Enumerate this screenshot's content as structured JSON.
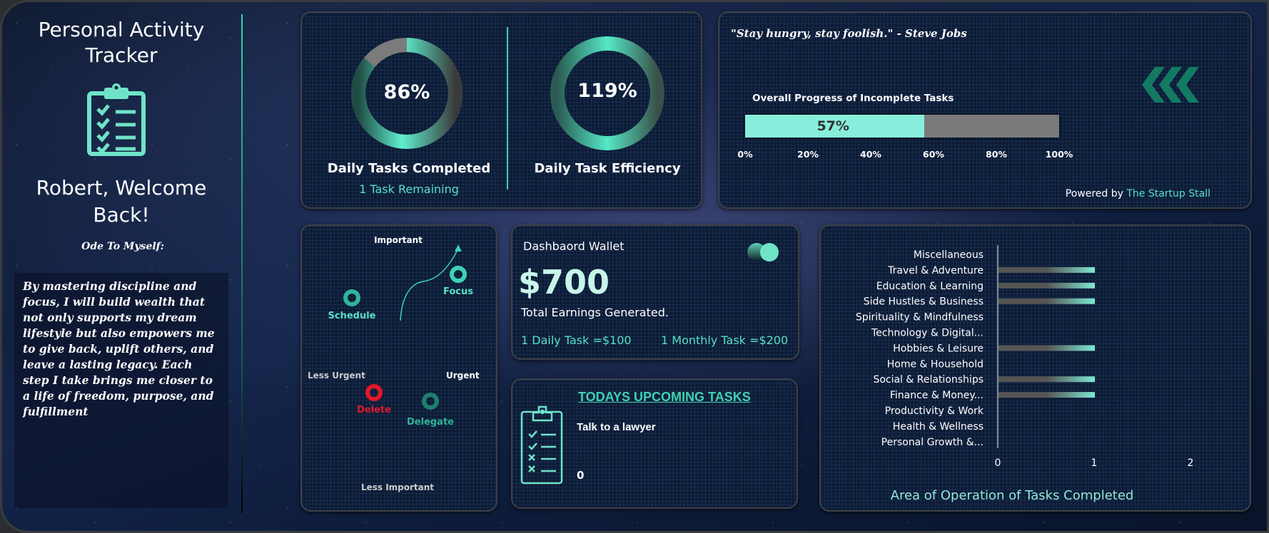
{
  "sidebar": {
    "title": "Personal Activity Tracker",
    "welcome": "Robert, Welcome Back!",
    "ode_title": "Ode To Myself:",
    "ode_text": "By mastering discipline and focus, I will build wealth that not only supports my dream lifestyle but also empowers me to give back, uplift others, and leave a lasting legacy. Each step I take brings me closer to a life of freedom, purpose, and fulfillment",
    "icon": "clipboard-checklist-icon"
  },
  "kpis": {
    "completed": {
      "value": "86%",
      "percent": 86,
      "label": "Daily Tasks Completed",
      "sub": "1 Task Remaining"
    },
    "efficiency": {
      "value": "119%",
      "percent": 119,
      "label": "Daily Task Efficiency"
    }
  },
  "progress": {
    "quote": "\"Stay hungry, stay foolish.\" - Steve Jobs",
    "title": "Overall Progress of Incomplete Tasks",
    "value": "57%",
    "percent": 57,
    "ticks": [
      "0%",
      "20%",
      "40%",
      "60%",
      "80%",
      "100%"
    ],
    "powered_prefix": "Powered by",
    "powered_brand": "The Startup Stall",
    "icon": "chevrons-left-icon"
  },
  "matrix": {
    "top": "Important",
    "bottom": "Less Important",
    "left": "Less Urgent",
    "right": "Urgent",
    "schedule": "Schedule",
    "focus": "Focus",
    "delete": "Delete",
    "delegate": "Delegate"
  },
  "wallet": {
    "title": "Dashbaord Wallet",
    "amount": "$700",
    "caption": "Total Earnings Generated.",
    "daily": "1 Daily Task =$100",
    "monthly": "1 Monthly Task =$200"
  },
  "tasks": {
    "heading": "TODAYS UPCOMING TASKS",
    "item": "Talk to a lawyer",
    "count": "0"
  },
  "colors": {
    "accent": "#57e0c4",
    "gray": "#7a7a7a",
    "delete": "#e0182a"
  },
  "chart_data": {
    "type": "bar",
    "orientation": "horizontal",
    "title": "Area of Operation of Tasks Completed",
    "categories": [
      "Miscellaneous",
      "Travel & Adventure",
      "Education & Learning",
      "Side Hustles & Business",
      "Spirituality & Mindfulness",
      "Technology & Digital...",
      "Hobbies & Leisure",
      "Home & Household",
      "Social & Relationships",
      "Finance & Money...",
      "Productivity & Work",
      "Health & Wellness",
      "Personal Growth &..."
    ],
    "values": [
      0,
      1,
      1,
      1,
      0,
      0,
      1,
      0,
      1,
      1,
      0,
      0,
      0
    ],
    "xlim": [
      0,
      2
    ],
    "xticks": [
      "0",
      "1",
      "2"
    ],
    "grid": false
  }
}
